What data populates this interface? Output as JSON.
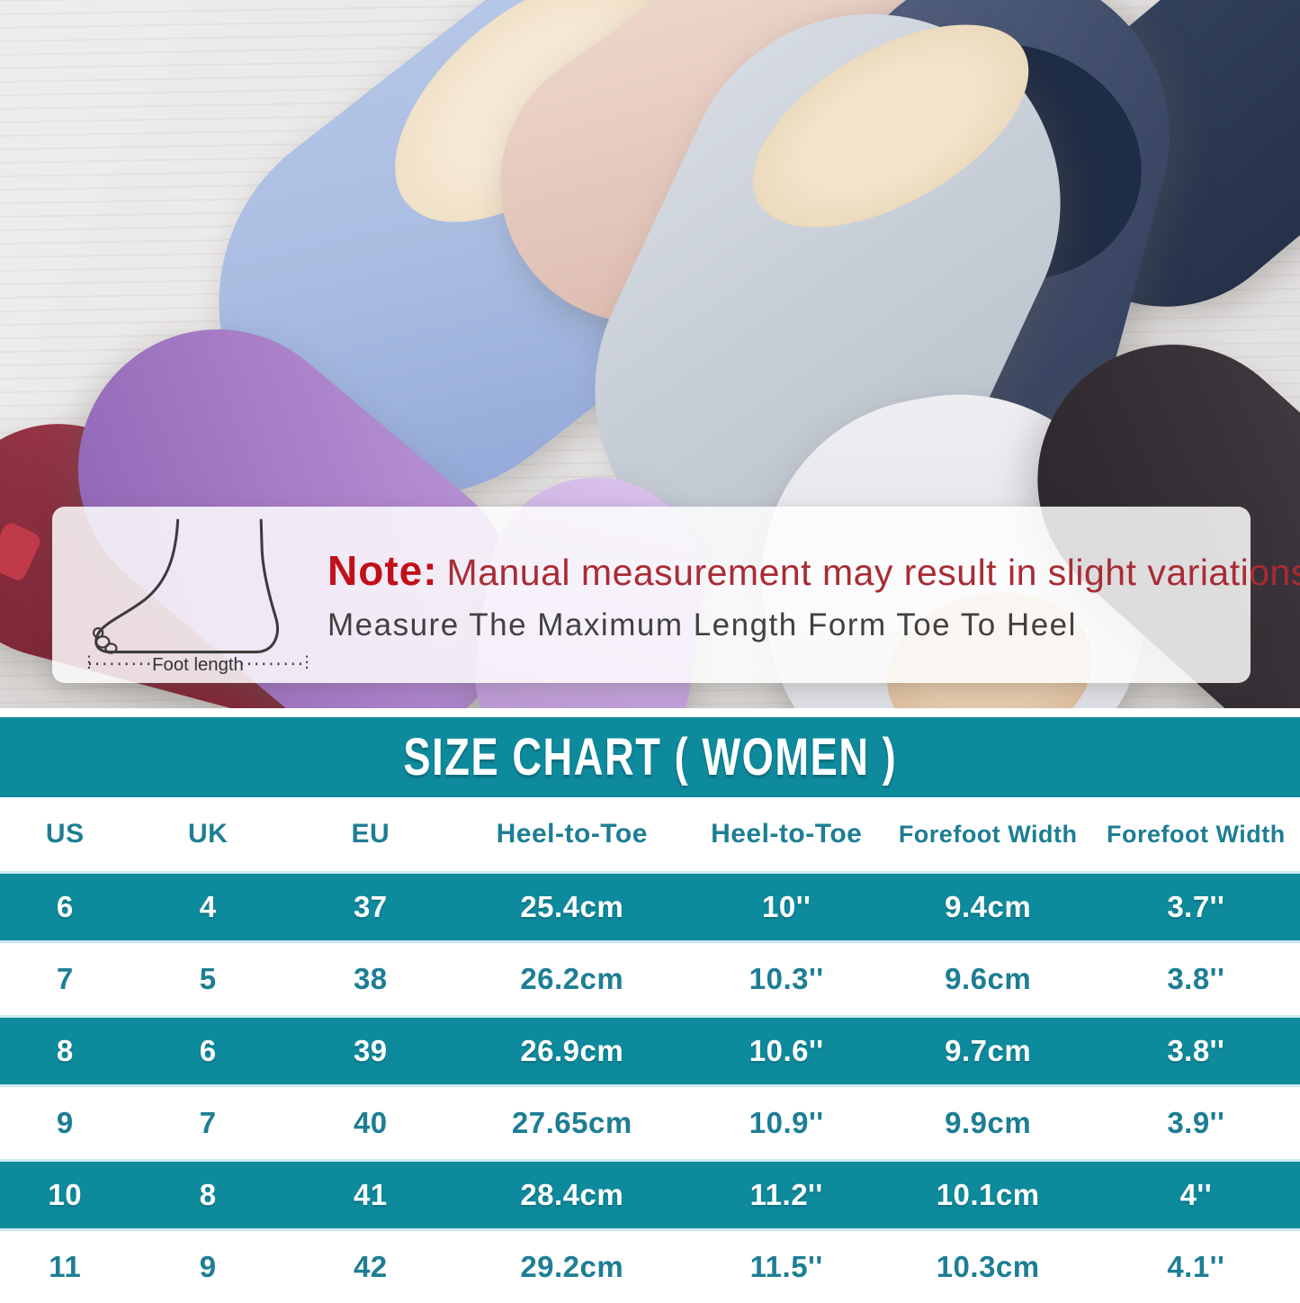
{
  "chart_data": {
    "type": "table",
    "title": "SIZE CHART ( WOMEN )",
    "columns": [
      "US",
      "UK",
      "EU",
      "Heel-to-Toe",
      "Heel-to-Toe",
      "Forefoot Width",
      "Forefoot Width"
    ],
    "rows": [
      [
        "6",
        "4",
        "37",
        "25.4cm",
        "10''",
        "9.4cm",
        "3.7''"
      ],
      [
        "7",
        "5",
        "38",
        "26.2cm",
        "10.3''",
        "9.6cm",
        "3.8''"
      ],
      [
        "8",
        "6",
        "39",
        "26.9cm",
        "10.6''",
        "9.7cm",
        "3.8''"
      ],
      [
        "9",
        "7",
        "40",
        "27.65cm",
        "10.9''",
        "9.9cm",
        "3.9''"
      ],
      [
        "10",
        "8",
        "41",
        "28.4cm",
        "11.2''",
        "10.1cm",
        "4''"
      ],
      [
        "11",
        "9",
        "42",
        "29.2cm",
        "11.5''",
        "10.3cm",
        "4.1''"
      ]
    ]
  },
  "note": {
    "label": "Note:",
    "line1": "Manual measurement may result in slight variations.",
    "line2": "Measure The Maximum Length Form Toe To Heel",
    "foot_caption": "Foot length"
  },
  "colors": {
    "accent_teal": "#0e8a9d",
    "teal_text": "#1d7e94",
    "note_red_bold": "#c21018",
    "note_red": "#a82c35",
    "note_gray": "#414141"
  }
}
